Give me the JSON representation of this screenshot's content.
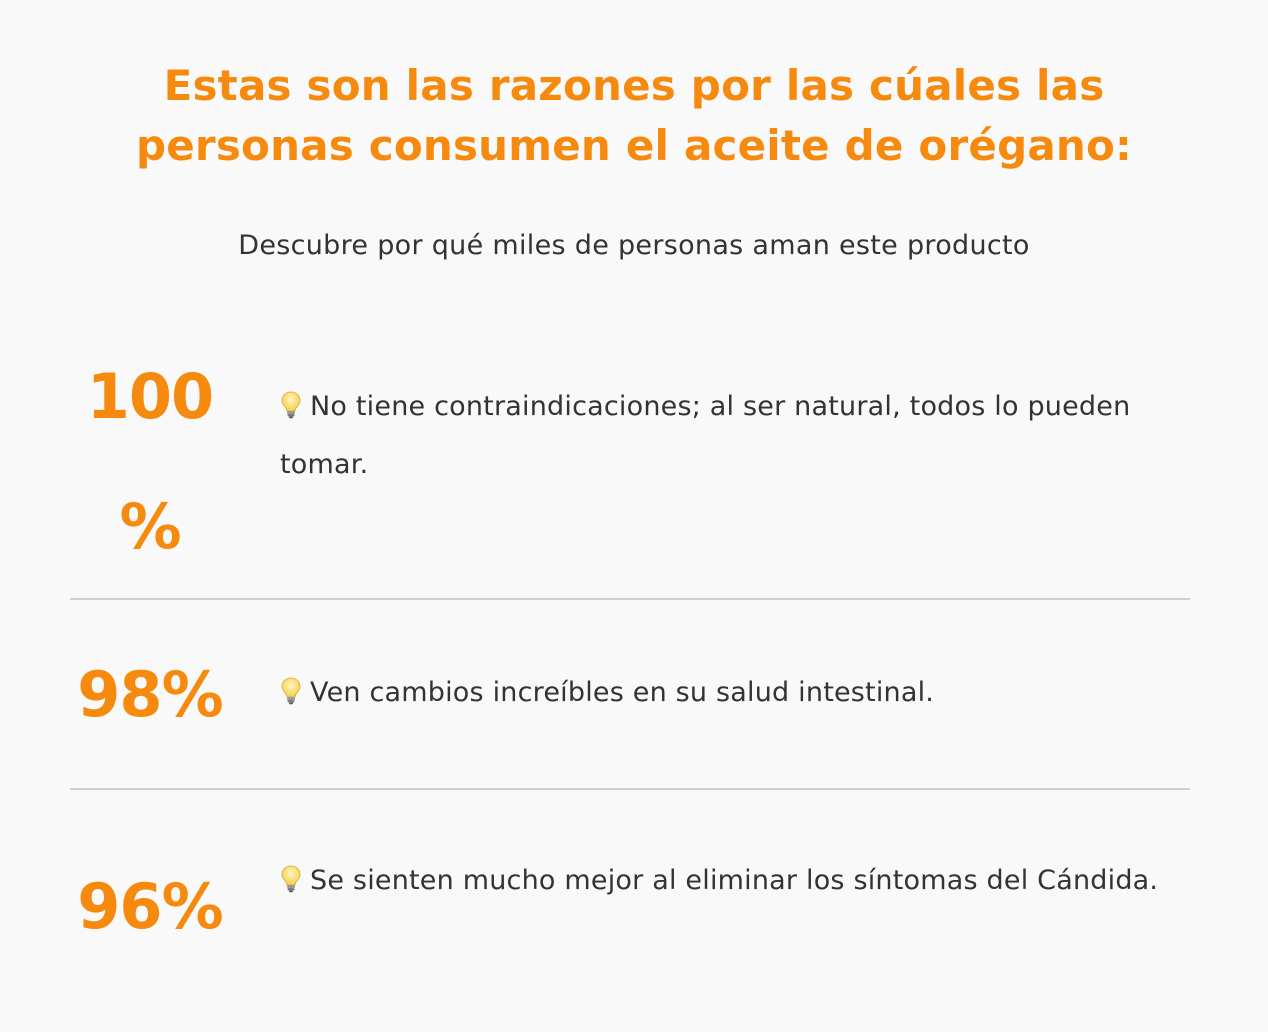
{
  "header": {
    "title": "Estas son las razones por las cúales las personas consumen el aceite de orégano:",
    "subtitle": "Descubre por qué miles de personas aman este producto"
  },
  "stats": [
    {
      "value": "100 %",
      "icon": "lightbulb-icon",
      "text": "No tiene contraindicaciones; al ser natural, todos lo pueden tomar."
    },
    {
      "value": "98%",
      "icon": "lightbulb-icon",
      "text": "Ven cambios increíbles en su salud intestinal."
    },
    {
      "value": "96%",
      "icon": "lightbulb-icon",
      "text": "Se sienten mucho mejor al eliminar los síntomas del Cándida."
    }
  ],
  "colors": {
    "accent": "#f58a0f",
    "text": "#333333",
    "background": "#f9f9f9",
    "divider": "#cfcfcf"
  }
}
